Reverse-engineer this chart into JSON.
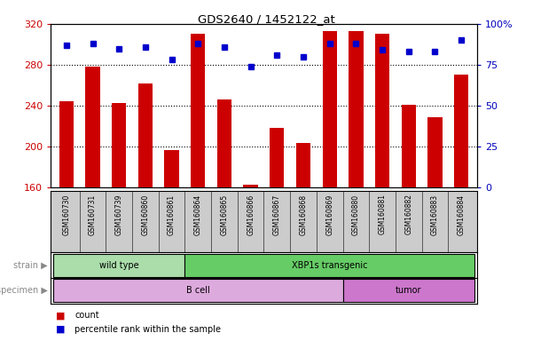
{
  "title": "GDS2640 / 1452122_at",
  "samples": [
    "GSM160730",
    "GSM160731",
    "GSM160739",
    "GSM160860",
    "GSM160861",
    "GSM160864",
    "GSM160865",
    "GSM160866",
    "GSM160867",
    "GSM160868",
    "GSM160869",
    "GSM160880",
    "GSM160881",
    "GSM160882",
    "GSM160883",
    "GSM160884"
  ],
  "counts": [
    244,
    278,
    243,
    262,
    197,
    310,
    246,
    163,
    218,
    204,
    313,
    313,
    310,
    241,
    229,
    270
  ],
  "percentiles": [
    87,
    88,
    85,
    86,
    78,
    88,
    86,
    74,
    81,
    80,
    88,
    88,
    84,
    83,
    83,
    90
  ],
  "ymin": 160,
  "ymax": 320,
  "yticks": [
    160,
    200,
    240,
    280,
    320
  ],
  "yticks_right": [
    0,
    25,
    50,
    75,
    100
  ],
  "bar_color": "#cc0000",
  "dot_color": "#0000cc",
  "strain_groups": [
    {
      "label": "wild type",
      "start": 0,
      "end": 5,
      "color": "#aaddaa"
    },
    {
      "label": "XBP1s transgenic",
      "start": 5,
      "end": 16,
      "color": "#66cc66"
    }
  ],
  "specimen_groups": [
    {
      "label": "B cell",
      "start": 0,
      "end": 11,
      "color": "#ddaadd"
    },
    {
      "label": "tumor",
      "start": 11,
      "end": 16,
      "color": "#cc77cc"
    }
  ],
  "bg_color": "#ffffff",
  "sample_area_bg": "#cccccc",
  "xlabel_color": "#cc0000",
  "ylabel_right_color": "#0000bb"
}
